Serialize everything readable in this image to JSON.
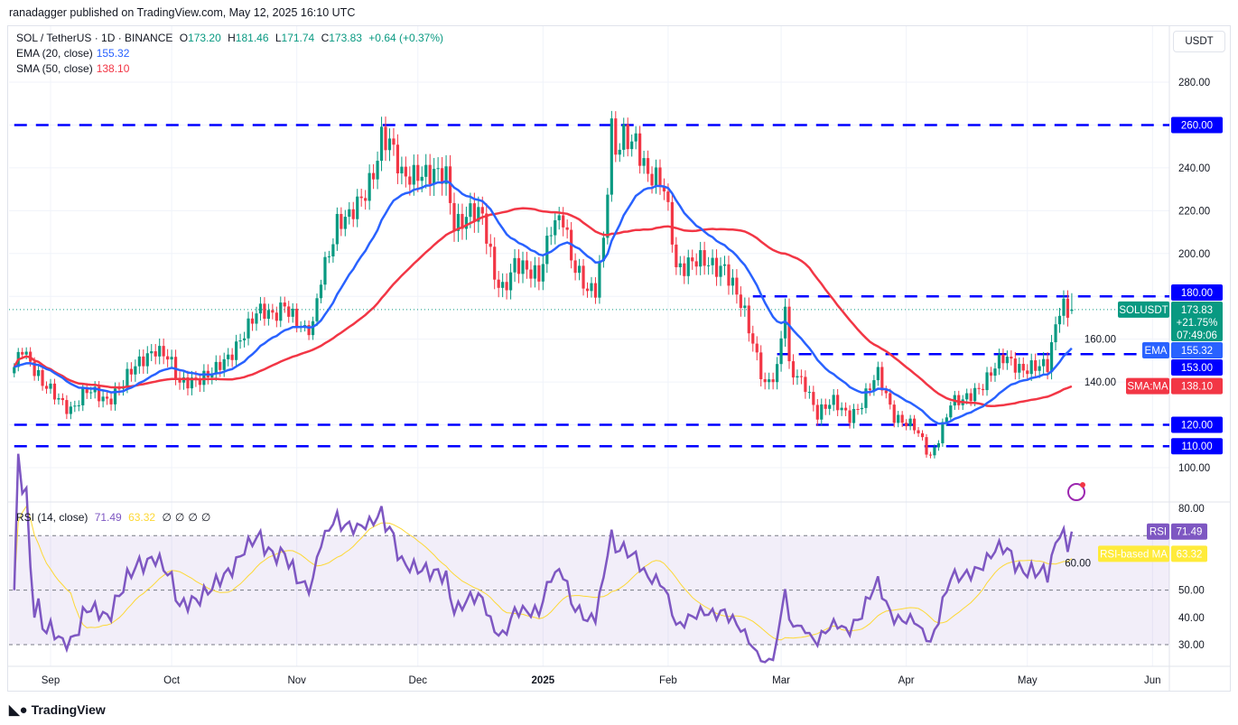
{
  "publisher": "ranadagger published on TradingView.com, May 12, 2025 16:10 UTC",
  "legend": {
    "symbol": "SOL / TetherUS · 1D · BINANCE",
    "open_label": "O",
    "open": "173.20",
    "high_label": "H",
    "high": "181.46",
    "low_label": "L",
    "low": "171.74",
    "close_label": "C",
    "close": "173.83",
    "change": "+0.64 (+0.37%)",
    "ema_label": "EMA (20, close)",
    "ema_value": "155.32",
    "sma_label": "SMA (50, close)",
    "sma_value": "138.10",
    "rsi_label": "RSI (14, close)",
    "rsi_value": "71.49",
    "rsi_ma_value": "63.32",
    "rsi_extra": [
      "∅",
      "∅",
      "∅",
      "∅"
    ]
  },
  "currency_button": "USDT",
  "logo_text": "TradingView",
  "colors": {
    "up": "#089981",
    "down": "#f23645",
    "ema": "#2962ff",
    "sma": "#f23645",
    "levels": "#0000ff",
    "rsi": "#7e57c2",
    "rsi_ma": "#fdd835"
  },
  "badges": {
    "symbol": "SOLUSDT",
    "price": "173.83",
    "pct": "+21.75%",
    "countdown": "07:49:06",
    "ema": "EMA",
    "ema_value": "155.32",
    "sma": "SMA:MA",
    "sma_value": "138.10",
    "rsi": "RSI",
    "rsi_value": "71.49",
    "rsi_ma": "RSI-based MA",
    "rsi_ma_value": "63.32"
  },
  "chart_data": {
    "type": "candlestick",
    "price_axis": {
      "range": [
        90,
        300
      ],
      "ticks": [
        "280.00",
        "260.00",
        "240.00",
        "220.00",
        "200.00",
        "180.00",
        "160.00",
        "140.00",
        "120.00",
        "100.00"
      ]
    },
    "rsi_axis": {
      "range": [
        22,
        82
      ],
      "ticks": [
        "80.00",
        "60.00",
        "50.00",
        "40.00",
        "30.00"
      ],
      "bands": [
        30,
        50,
        70
      ]
    },
    "time_axis": [
      {
        "label": "Sep",
        "date": "2024-09-01"
      },
      {
        "label": "Oct",
        "date": "2024-10-01"
      },
      {
        "label": "Nov",
        "date": "2024-11-01"
      },
      {
        "label": "Dec",
        "date": "2024-12-01"
      },
      {
        "label": "2025",
        "date": "2025-01-01",
        "bold": true
      },
      {
        "label": "Feb",
        "date": "2025-02-01"
      },
      {
        "label": "Mar",
        "date": "2025-03-01"
      },
      {
        "label": "Apr",
        "date": "2025-04-01"
      },
      {
        "label": "May",
        "date": "2025-05-01"
      },
      {
        "label": "Jun",
        "date": "2025-06-01"
      }
    ],
    "levels": [
      {
        "price": 260,
        "label": "260.00",
        "from": "2024-08-23"
      },
      {
        "price": 180,
        "label": "180.00",
        "from": "2025-02-22"
      },
      {
        "price": 153,
        "label": "153.00",
        "from": "2025-02-28"
      },
      {
        "price": 120,
        "label": "120.00",
        "from": "2024-08-23"
      },
      {
        "price": 110,
        "label": "110.00",
        "from": "2024-08-23"
      }
    ],
    "close_keypoints": [
      [
        "2024-08-23",
        147
      ],
      [
        "2024-08-25",
        158
      ],
      [
        "2024-08-30",
        138
      ],
      [
        "2024-09-01",
        135
      ],
      [
        "2024-09-06",
        128
      ],
      [
        "2024-09-10",
        135
      ],
      [
        "2024-09-15",
        132
      ],
      [
        "2024-09-19",
        140
      ],
      [
        "2024-09-23",
        148
      ],
      [
        "2024-09-27",
        157
      ],
      [
        "2024-09-30",
        152
      ],
      [
        "2024-10-03",
        138
      ],
      [
        "2024-10-08",
        143
      ],
      [
        "2024-10-12",
        145
      ],
      [
        "2024-10-15",
        150
      ],
      [
        "2024-10-19",
        165
      ],
      [
        "2024-10-22",
        172
      ],
      [
        "2024-10-26",
        170
      ],
      [
        "2024-10-29",
        178
      ],
      [
        "2024-11-03",
        162
      ],
      [
        "2024-11-05",
        165
      ],
      [
        "2024-11-07",
        190
      ],
      [
        "2024-11-11",
        215
      ],
      [
        "2024-11-14",
        215
      ],
      [
        "2024-11-17",
        225
      ],
      [
        "2024-11-20",
        240
      ],
      [
        "2024-11-22",
        255
      ],
      [
        "2024-11-24",
        250
      ],
      [
        "2024-11-27",
        235
      ],
      [
        "2024-12-01",
        240
      ],
      [
        "2024-12-05",
        235
      ],
      [
        "2024-12-08",
        235
      ],
      [
        "2024-12-10",
        215
      ],
      [
        "2024-12-14",
        220
      ],
      [
        "2024-12-17",
        215
      ],
      [
        "2024-12-20",
        190
      ],
      [
        "2024-12-22",
        185
      ],
      [
        "2024-12-25",
        195
      ],
      [
        "2024-12-28",
        190
      ],
      [
        "2024-12-31",
        190
      ],
      [
        "2025-01-03",
        215
      ],
      [
        "2025-01-06",
        215
      ],
      [
        "2025-01-08",
        195
      ],
      [
        "2025-01-12",
        185
      ],
      [
        "2025-01-14",
        185
      ],
      [
        "2025-01-16",
        205
      ],
      [
        "2025-01-18",
        255
      ],
      [
        "2025-01-19",
        245
      ],
      [
        "2025-01-21",
        255
      ],
      [
        "2025-01-24",
        255
      ],
      [
        "2025-01-27",
        235
      ],
      [
        "2025-01-31",
        230
      ],
      [
        "2025-02-02",
        210
      ],
      [
        "2025-02-03",
        195
      ],
      [
        "2025-02-07",
        195
      ],
      [
        "2025-02-11",
        195
      ],
      [
        "2025-02-15",
        195
      ],
      [
        "2025-02-20",
        170
      ],
      [
        "2025-02-25",
        140
      ],
      [
        "2025-02-28",
        145
      ],
      [
        "2025-03-02",
        175
      ],
      [
        "2025-03-03",
        145
      ],
      [
        "2025-03-07",
        140
      ],
      [
        "2025-03-10",
        125
      ],
      [
        "2025-03-14",
        130
      ],
      [
        "2025-03-18",
        125
      ],
      [
        "2025-03-21",
        130
      ],
      [
        "2025-03-25",
        143
      ],
      [
        "2025-03-29",
        125
      ],
      [
        "2025-04-03",
        118
      ],
      [
        "2025-04-07",
        105
      ],
      [
        "2025-04-09",
        115
      ],
      [
        "2025-04-12",
        130
      ],
      [
        "2025-04-15",
        130
      ],
      [
        "2025-04-19",
        138
      ],
      [
        "2025-04-22",
        145
      ],
      [
        "2025-04-25",
        150
      ],
      [
        "2025-04-29",
        147
      ],
      [
        "2025-05-02",
        148
      ],
      [
        "2025-05-06",
        146
      ],
      [
        "2025-05-08",
        165
      ],
      [
        "2025-05-09",
        175
      ],
      [
        "2025-05-10",
        177
      ],
      [
        "2025-05-11",
        173
      ],
      [
        "2025-05-12",
        173.83
      ]
    ],
    "last_candle": {
      "date": "2025-05-12",
      "open": 173.2,
      "high": 181.46,
      "low": 171.74,
      "close": 173.83
    },
    "indicators": [
      {
        "name": "EMA (20, close)",
        "last": 155.32
      },
      {
        "name": "SMA (50, close)",
        "last": 138.1
      },
      {
        "name": "RSI (14, close)",
        "last": 71.49,
        "ma_last": 63.32
      }
    ]
  }
}
